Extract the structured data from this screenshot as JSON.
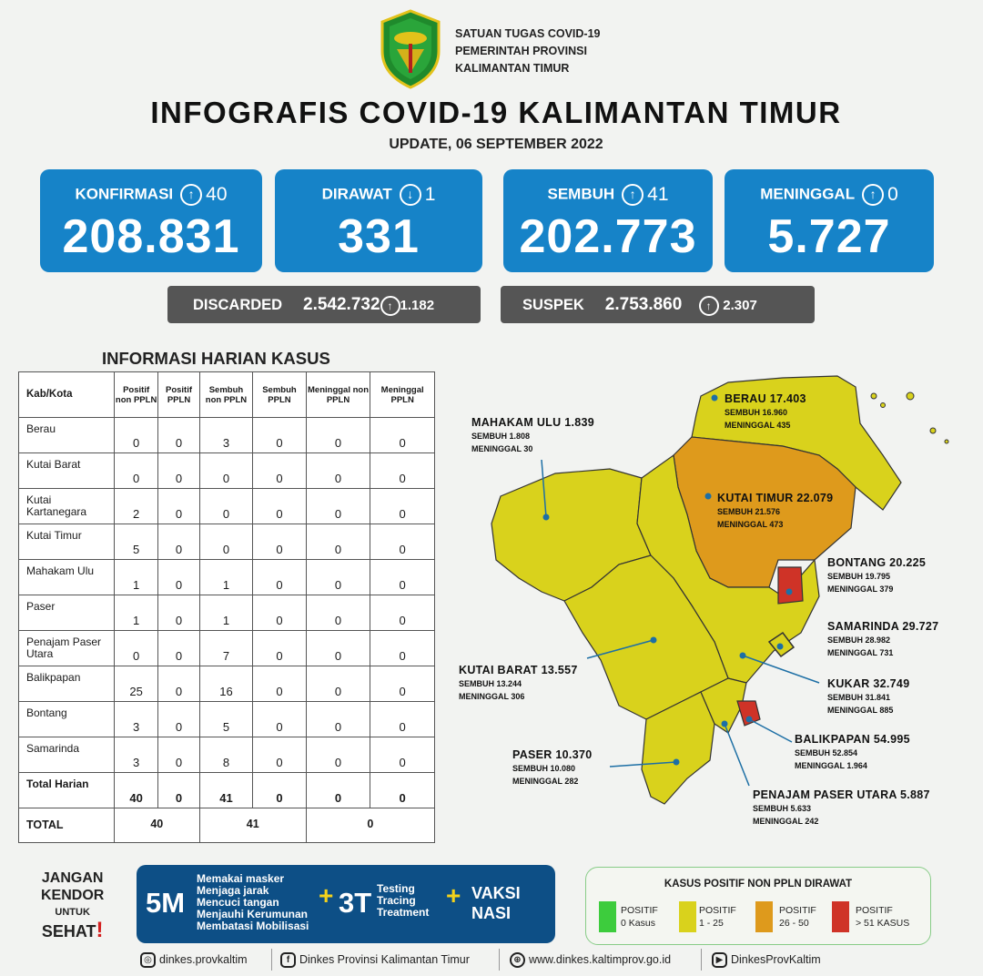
{
  "header": {
    "org_line1": "SATUAN TUGAS COVID-19",
    "org_line2": "PEMERINTAH PROVINSI",
    "org_line3": "KALIMANTAN TIMUR",
    "title": "INFOGRAFIS COVID-19 KALIMANTAN TIMUR",
    "update": "UPDATE, 06 SEPTEMBER 2022"
  },
  "stats": {
    "konfirmasi": {
      "label": "KONFIRMASI",
      "arrow": "↑",
      "delta": "40",
      "value": "208.831"
    },
    "dirawat": {
      "label": "DIRAWAT",
      "arrow": "↓",
      "delta": "1",
      "value": "331"
    },
    "sembuh": {
      "label": "SEMBUH",
      "arrow": "↑",
      "delta": "41",
      "value": "202.773"
    },
    "meninggal": {
      "label": "MENINGGAL",
      "arrow": "↑",
      "delta": "0",
      "value": "5.727"
    }
  },
  "extra": {
    "discarded": {
      "label": "DISCARDED",
      "value": "2.542.732",
      "arrow": "↑",
      "delta": "1.182"
    },
    "suspek": {
      "label": "SUSPEK",
      "value": "2.753.860",
      "arrow": "↑",
      "delta": "2.307"
    }
  },
  "table": {
    "title": "INFORMASI HARIAN KASUS",
    "headers": [
      "Kab/Kota",
      "Positif non PPLN",
      "Positif PPLN",
      "Sembuh non PPLN",
      "Sembuh PPLN",
      "Meninggal non PPLN",
      "Meninggal PPLN"
    ],
    "rows": [
      {
        "name": "Berau",
        "v": [
          "0",
          "0",
          "3",
          "0",
          "0",
          "0"
        ]
      },
      {
        "name": "Kutai Barat",
        "v": [
          "0",
          "0",
          "0",
          "0",
          "0",
          "0"
        ]
      },
      {
        "name": "Kutai Kartanegara",
        "v": [
          "2",
          "0",
          "0",
          "0",
          "0",
          "0"
        ]
      },
      {
        "name": "Kutai Timur",
        "v": [
          "5",
          "0",
          "0",
          "0",
          "0",
          "0"
        ]
      },
      {
        "name": "Mahakam Ulu",
        "v": [
          "1",
          "0",
          "1",
          "0",
          "0",
          "0"
        ]
      },
      {
        "name": "Paser",
        "v": [
          "1",
          "0",
          "1",
          "0",
          "0",
          "0"
        ]
      },
      {
        "name": "Penajam Paser Utara",
        "v": [
          "0",
          "0",
          "7",
          "0",
          "0",
          "0"
        ]
      },
      {
        "name": "Balikpapan",
        "v": [
          "25",
          "0",
          "16",
          "0",
          "0",
          "0"
        ]
      },
      {
        "name": "Bontang",
        "v": [
          "3",
          "0",
          "5",
          "0",
          "0",
          "0"
        ]
      },
      {
        "name": "Samarinda",
        "v": [
          "3",
          "0",
          "8",
          "0",
          "0",
          "0"
        ]
      }
    ],
    "harian": {
      "name": "Total Harian",
      "v": [
        "40",
        "0",
        "41",
        "0",
        "0",
        "0"
      ]
    },
    "total": {
      "name": "TOTAL",
      "positif": "40",
      "sembuh": "41",
      "meninggal": "0"
    }
  },
  "map": {
    "berau": {
      "name": "BERAU  17.403",
      "sembuh": "SEMBUH 16.960",
      "meninggal": "MENINGGAL 435"
    },
    "mahulu": {
      "name": "MAHAKAM ULU  1.839",
      "sembuh": "SEMBUH 1.808",
      "meninggal": "MENINGGAL 30"
    },
    "kutim": {
      "name": "KUTAI TIMUR 22.079",
      "sembuh": "SEMBUH 21.576",
      "meninggal": "MENINGGAL 473"
    },
    "bontang": {
      "name": "BONTANG  20.225",
      "sembuh": "SEMBUH 19.795",
      "meninggal": "MENINGGAL 379"
    },
    "samarinda": {
      "name": "SAMARINDA  29.727",
      "sembuh": "SEMBUH 28.982",
      "meninggal": "MENINGGAL 731"
    },
    "kubar": {
      "name": "KUTAI BARAT 13.557",
      "sembuh": "SEMBUH 13.244",
      "meninggal": "MENINGGAL 306"
    },
    "kukar": {
      "name": "KUKAR 32.749",
      "sembuh": "SEMBUH 31.841",
      "meninggal": "MENINGGAL 885"
    },
    "balikpapan": {
      "name": "BALIKPAPAN  54.995",
      "sembuh": "SEMBUH 52.854",
      "meninggal": "MENINGGAL 1.964"
    },
    "paser": {
      "name": "PASER  10.370",
      "sembuh": "SEMBUH 10.080",
      "meninggal": "MENINGGAL 282"
    },
    "ppu": {
      "name": "PENAJAM PASER UTARA 5.887",
      "sembuh": "SEMBUH 5.633",
      "meninggal": "MENINGGAL 242"
    },
    "colors": {
      "green": "#3dcc3d",
      "yellow": "#d9d21c",
      "orange": "#de9a1c",
      "red": "#cf3327"
    }
  },
  "slogan": {
    "line1": "JANGAN",
    "line2": "KENDOR",
    "line3": "UNTUK",
    "line4": "SEHAT",
    "excl": "!"
  },
  "campaign": {
    "m5": "5M",
    "m5_items": [
      "Memakai masker",
      "Menjaga jarak",
      "Mencuci tangan",
      "Menjauhi Kerumunan",
      "Membatasi Mobilisasi"
    ],
    "t3": "3T",
    "t3_items": [
      "Testing",
      "Tracing",
      "Treatment"
    ],
    "vaksi1": "VAKSI",
    "vaksi2": "NASI",
    "plus": "+"
  },
  "legend": {
    "title": "KASUS POSITIF NON PPLN DIRAWAT",
    "items": [
      {
        "l1": "POSITIF",
        "l2": "0 Kasus"
      },
      {
        "l1": "POSITIF",
        "l2": "1 - 25"
      },
      {
        "l1": "POSITIF",
        "l2": "26 - 50"
      },
      {
        "l1": "POSITIF",
        "l2": "> 51 KASUS"
      }
    ]
  },
  "footer": {
    "instagram": "dinkes.provkaltim",
    "facebook": "Dinkes Provinsi Kalimantan Timur",
    "web": "www.dinkes.kaltimprov.go.id",
    "youtube": "DinkesProvKaltim"
  }
}
